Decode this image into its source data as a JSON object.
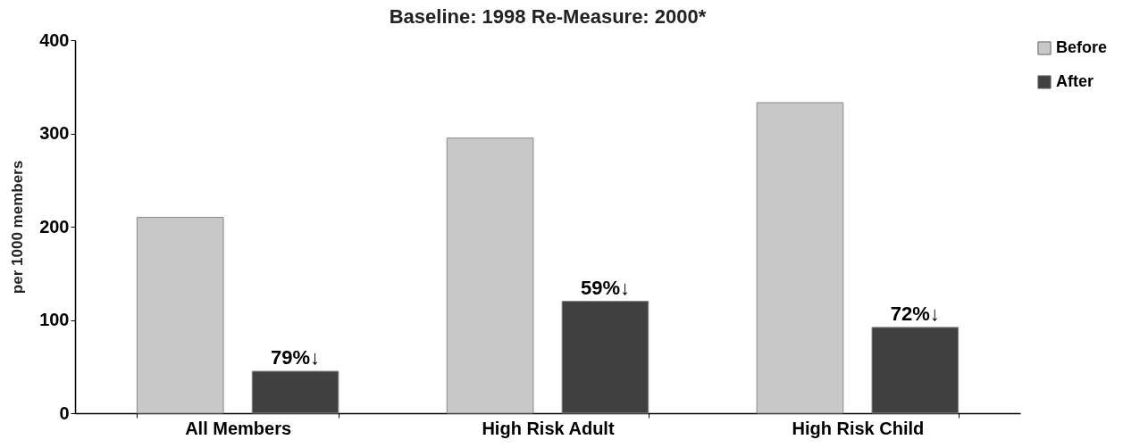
{
  "chart_data": {
    "type": "bar",
    "title": "Baseline: 1998  Re-Measure: 2000*",
    "ylabel": "per 1000 members",
    "categories": [
      "All Members",
      "High Risk Adult",
      "High Risk Child"
    ],
    "series": [
      {
        "name": "Before",
        "color": "#c8c8c8",
        "values": [
          210,
          295,
          333
        ]
      },
      {
        "name": "After",
        "color": "#404040",
        "values": [
          45,
          120,
          92
        ]
      }
    ],
    "annotations": [
      "79%↓",
      "59%↓",
      "72%↓"
    ],
    "ylim": [
      0,
      400
    ],
    "yticks": [
      0,
      100,
      200,
      300,
      400
    ],
    "grid": false,
    "legend": "right"
  }
}
